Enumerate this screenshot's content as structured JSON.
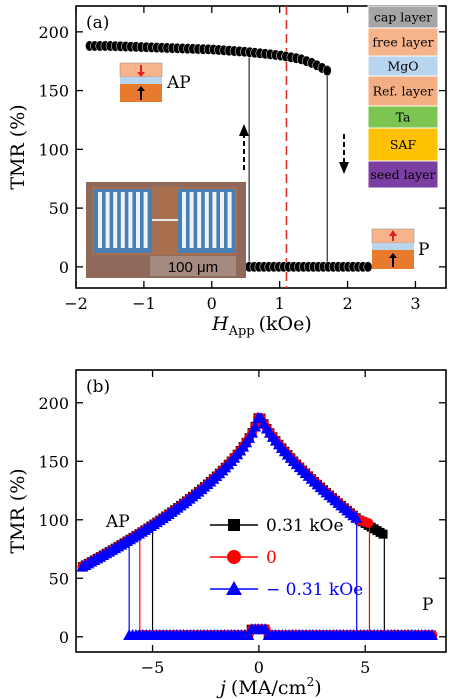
{
  "chart_data": [
    {
      "type": "scatter",
      "panel_label": "(a)",
      "xlabel_main": "H",
      "xlabel_sub": "App",
      "xlabel_unit": "(kOe)",
      "ylabel": "TMR (%)",
      "xlim": [
        -2,
        3.45
      ],
      "ylim": [
        -18,
        222
      ],
      "xticks": [
        -2,
        -1,
        0,
        1,
        2,
        3
      ],
      "xtick_labels": [
        "−2",
        "−1",
        "0",
        "1",
        "2",
        "3"
      ],
      "yticks": [
        0,
        50,
        100,
        150,
        200
      ],
      "ytick_labels": [
        "0",
        "50",
        "100",
        "150",
        "200"
      ],
      "marker_color": "#000000",
      "dashed_line_x": 1.1,
      "dashed_line_color": "#e0302c",
      "branches": [
        {
          "name": "AP",
          "x": [
            -1.8,
            -1.5,
            -1.0,
            -0.5,
            0.0,
            0.5,
            1.0,
            1.3,
            1.5,
            1.7
          ],
          "y": [
            188,
            188,
            187,
            186,
            185,
            183,
            180,
            177,
            173,
            167
          ]
        },
        {
          "name": "P",
          "x": [
            0.55,
            1.0,
            1.5,
            2.0,
            2.3
          ],
          "y": [
            0,
            0,
            0,
            0,
            0
          ]
        }
      ],
      "switch_lines": [
        {
          "x": 0.55,
          "y_from": 0,
          "y_to": 187
        },
        {
          "x": 1.7,
          "y_from": 167,
          "y_to": 0
        }
      ],
      "annotations": {
        "ap": "AP",
        "p": "P",
        "scale": "100 μm"
      },
      "stack_layers": [
        {
          "label": "cap layer",
          "color": "#a5a5a5"
        },
        {
          "label": "free layer",
          "color": "#f7b48b"
        },
        {
          "label": "MgO",
          "color": "#b9d4ee"
        },
        {
          "label": "Ref. layer",
          "color": "#f4ae84"
        },
        {
          "label": "Ta",
          "color": "#7cc552"
        },
        {
          "label": "SAF",
          "color": "#fec104"
        },
        {
          "label": "seed layer",
          "color": "#7a3fa0"
        }
      ]
    },
    {
      "type": "scatter",
      "panel_label": "(b)",
      "xlabel_main": "j",
      "xlabel_unit": "(MA/cm",
      "xlabel_sup": "2",
      "xlabel_close": ")",
      "ylabel": "TMR (%)",
      "xlim": [
        -8.6,
        8.8
      ],
      "ylim": [
        -13,
        228
      ],
      "xticks": [
        -5,
        0,
        5
      ],
      "xtick_labels": [
        "−5",
        "0",
        "5"
      ],
      "yticks": [
        0,
        50,
        100,
        150,
        200
      ],
      "ytick_labels": [
        "0",
        "50",
        "100",
        "150",
        "200"
      ],
      "annotations": {
        "ap": "AP",
        "p": "P"
      },
      "series": [
        {
          "name": "0.31 kOe",
          "color": "#000000",
          "marker": "square",
          "switch_pos": 5.9,
          "switch_neg": -5.0,
          "top_val": 86
        },
        {
          "name": "0",
          "color": "#ff0000",
          "marker": "circle",
          "switch_pos": 5.2,
          "switch_neg": -5.6,
          "top_val": 92
        },
        {
          "name": "− 0.31 kOe",
          "color": "#0000ff",
          "marker": "triangle",
          "switch_pos": 4.6,
          "switch_neg": -6.1,
          "top_val": 98
        }
      ]
    }
  ]
}
